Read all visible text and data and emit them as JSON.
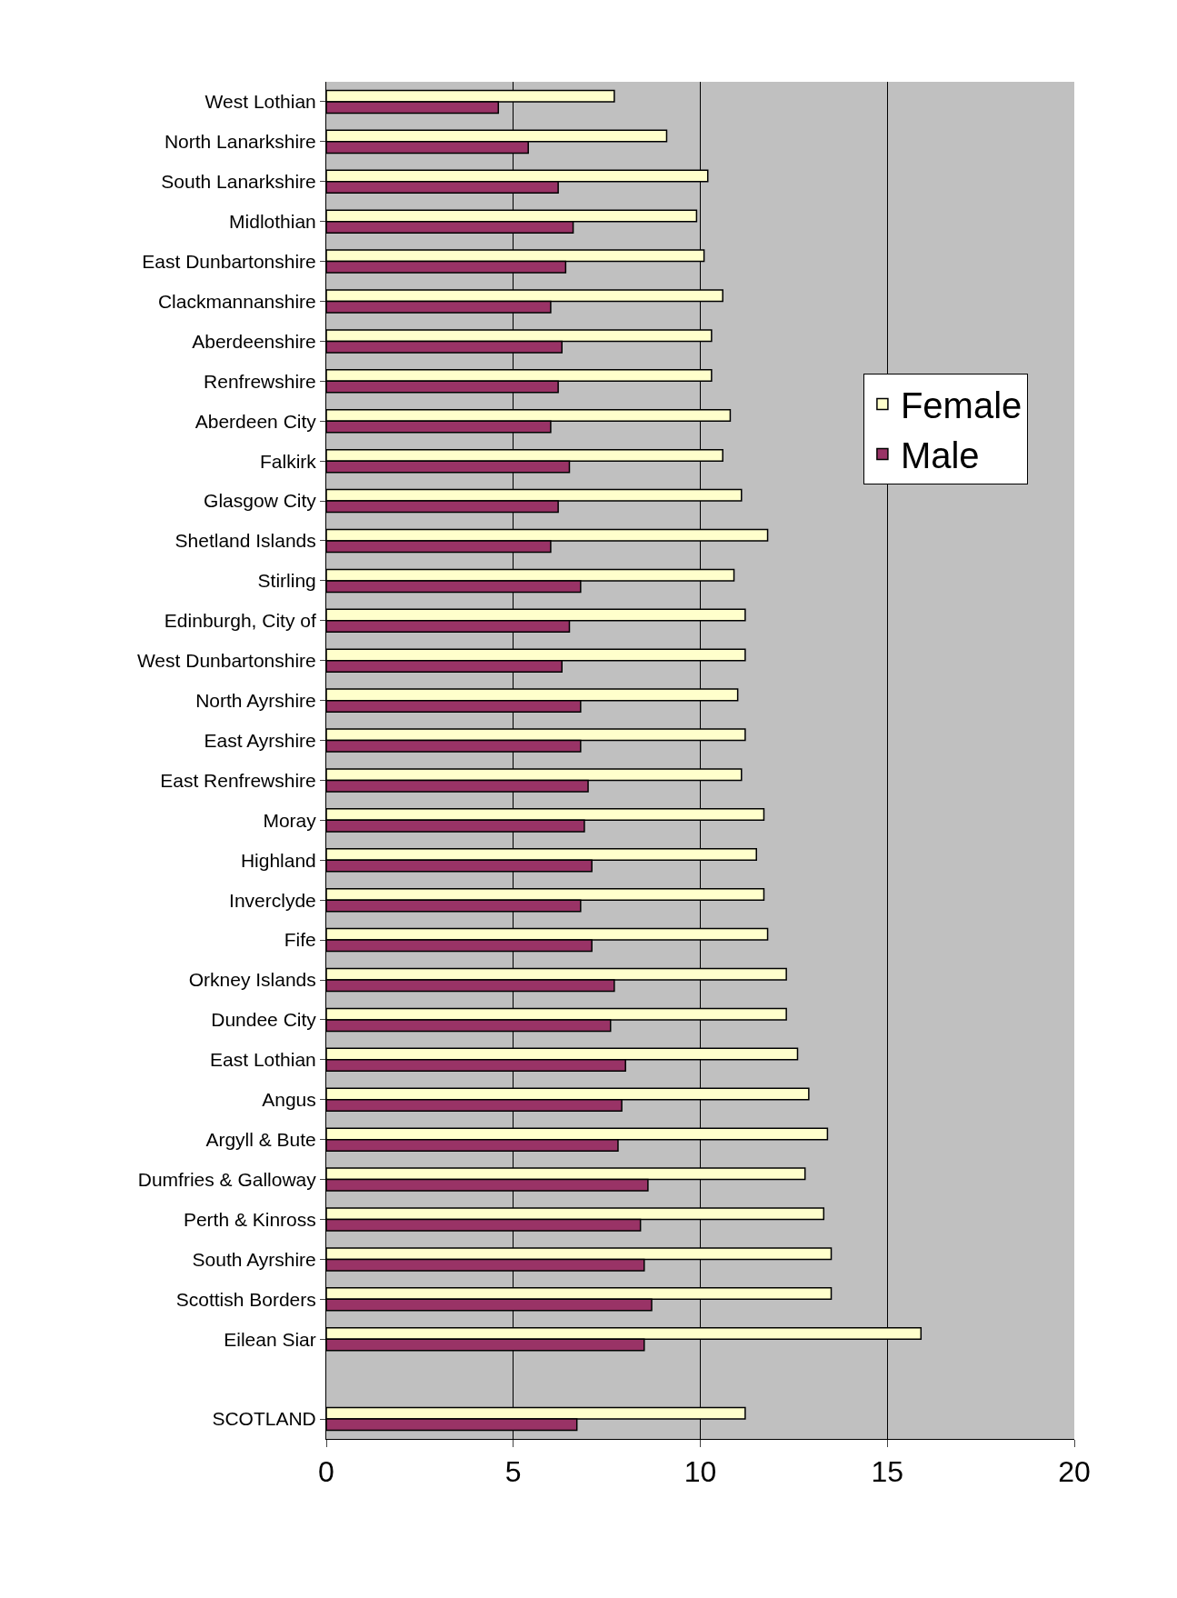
{
  "chart_data": {
    "type": "bar",
    "orientation": "horizontal",
    "categories": [
      "West Lothian",
      "North Lanarkshire",
      "South Lanarkshire",
      "Midlothian",
      "East Dunbartonshire",
      "Clackmannanshire",
      "Aberdeenshire",
      "Renfrewshire",
      "Aberdeen City",
      "Falkirk",
      "Glasgow City",
      "Shetland Islands",
      "Stirling",
      "Edinburgh, City of",
      "West Dunbartonshire",
      "North Ayrshire",
      "East Ayrshire",
      "East Renfrewshire",
      "Moray",
      "Highland",
      "Inverclyde",
      "Fife",
      "Orkney Islands",
      "Dundee City",
      "East Lothian",
      "Angus",
      "Argyll & Bute",
      "Dumfries & Galloway",
      "Perth & Kinross",
      "South Ayrshire",
      "Scottish Borders",
      "Eilean Siar",
      null,
      "SCOTLAND"
    ],
    "series": [
      {
        "name": "Female",
        "color": "#ffffcc",
        "values": [
          7.7,
          9.1,
          10.2,
          9.9,
          10.1,
          10.6,
          10.3,
          10.3,
          10.8,
          10.6,
          11.1,
          11.8,
          10.9,
          11.2,
          11.2,
          11.0,
          11.2,
          11.1,
          11.7,
          11.5,
          11.7,
          11.8,
          12.3,
          12.3,
          12.6,
          12.9,
          13.4,
          12.8,
          13.3,
          13.5,
          13.5,
          15.9,
          null,
          11.2
        ]
      },
      {
        "name": "Male",
        "color": "#993366",
        "values": [
          4.6,
          5.4,
          6.2,
          6.6,
          6.4,
          6.0,
          6.3,
          6.2,
          6.0,
          6.5,
          6.2,
          6.0,
          6.8,
          6.5,
          6.3,
          6.8,
          6.8,
          7.0,
          6.9,
          7.1,
          6.8,
          7.1,
          7.7,
          7.6,
          8.0,
          7.9,
          7.8,
          8.6,
          8.4,
          8.5,
          8.7,
          8.5,
          null,
          6.7
        ]
      }
    ],
    "xlim": [
      0,
      20
    ],
    "xticks": [
      0,
      5,
      10,
      15,
      20
    ],
    "grid": "x",
    "legend": "right"
  }
}
